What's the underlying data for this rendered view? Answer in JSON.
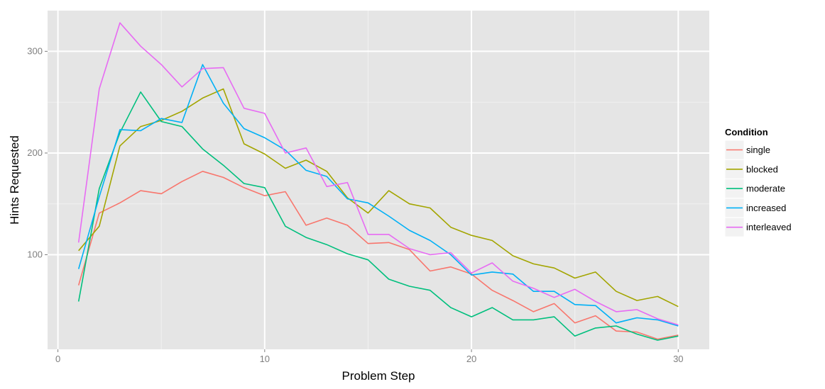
{
  "chart_data": {
    "type": "line",
    "title": "",
    "xlabel": "Problem Step",
    "ylabel": "Hints Requested",
    "xlim": [
      -0.5,
      31.5
    ],
    "ylim": [
      7,
      340
    ],
    "x_ticks": [
      0,
      10,
      20,
      30
    ],
    "y_ticks": [
      100,
      200,
      300
    ],
    "x_tick_labels": [
      "0",
      "10",
      "20",
      "30"
    ],
    "y_tick_labels": [
      "100",
      "200",
      "300"
    ],
    "grid": true,
    "legend": {
      "title": "Condition",
      "position": "right"
    },
    "x": [
      1,
      2,
      3,
      4,
      5,
      6,
      7,
      8,
      9,
      10,
      11,
      12,
      13,
      14,
      15,
      16,
      17,
      18,
      19,
      20,
      21,
      22,
      23,
      24,
      25,
      26,
      27,
      28,
      29,
      30
    ],
    "series": [
      {
        "name": "single",
        "color": "#F8766D",
        "values": [
          70,
          141,
          151,
          163,
          160,
          172,
          182,
          176,
          166,
          158,
          162,
          129,
          136,
          129,
          111,
          112,
          105,
          84,
          88,
          81,
          65,
          55,
          44,
          52,
          33,
          40,
          25,
          24,
          17,
          21
        ]
      },
      {
        "name": "blocked",
        "color": "#A3A500",
        "values": [
          104,
          128,
          207,
          226,
          232,
          241,
          254,
          263,
          209,
          199,
          185,
          193,
          182,
          156,
          141,
          163,
          150,
          146,
          127,
          119,
          114,
          99,
          91,
          87,
          77,
          83,
          64,
          55,
          59,
          49
        ]
      },
      {
        "name": "moderate",
        "color": "#00BF7D",
        "values": [
          54,
          165,
          220,
          260,
          231,
          226,
          204,
          188,
          170,
          166,
          128,
          117,
          110,
          101,
          95,
          76,
          69,
          65,
          48,
          39,
          48,
          36,
          36,
          39,
          20,
          28,
          30,
          22,
          16,
          20
        ]
      },
      {
        "name": "increased",
        "color": "#00B0F6",
        "values": [
          86,
          157,
          223,
          222,
          234,
          230,
          287,
          249,
          224,
          215,
          203,
          183,
          177,
          155,
          151,
          138,
          124,
          114,
          100,
          80,
          83,
          81,
          64,
          64,
          51,
          50,
          33,
          38,
          36,
          30
        ]
      },
      {
        "name": "interleaved",
        "color": "#E76BF3",
        "values": [
          112,
          263,
          328,
          305,
          287,
          265,
          283,
          284,
          244,
          239,
          200,
          205,
          167,
          171,
          120,
          120,
          106,
          100,
          102,
          82,
          92,
          74,
          67,
          58,
          66,
          54,
          44,
          46,
          37,
          31
        ]
      }
    ]
  }
}
